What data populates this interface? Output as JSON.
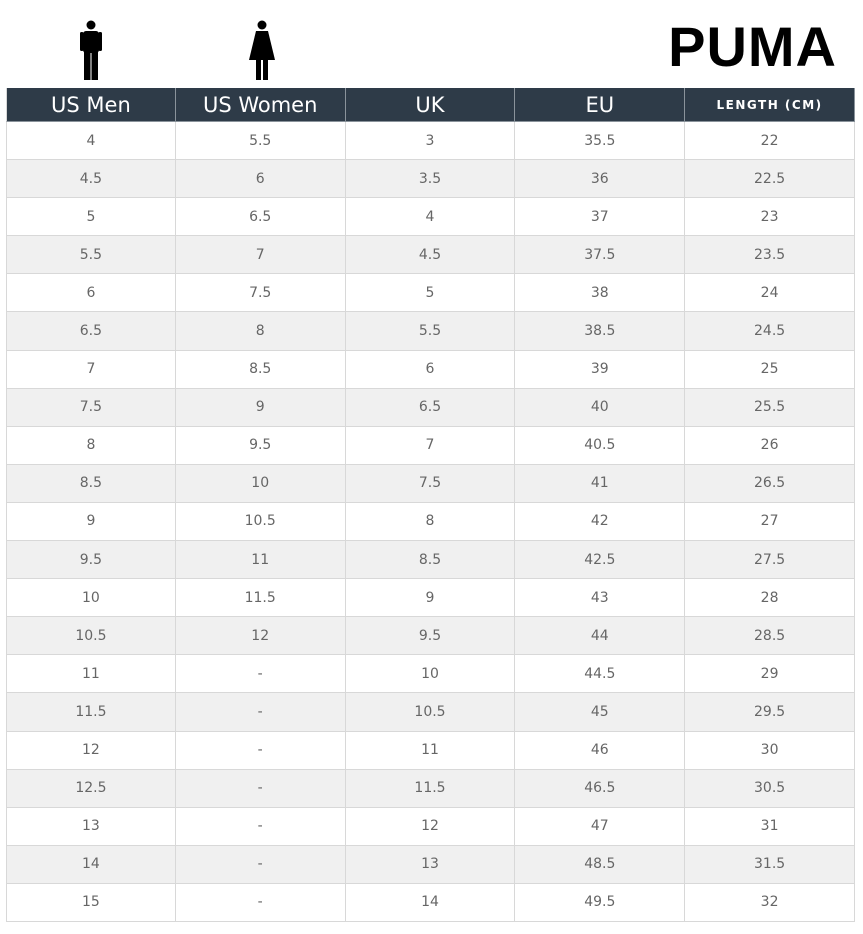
{
  "brand": "PUMA",
  "table": {
    "headers": [
      "US Men",
      "US Women",
      "UK",
      "EU",
      "LENGTH (CM)"
    ],
    "rows": [
      [
        "4",
        "5.5",
        "3",
        "35.5",
        "22"
      ],
      [
        "4.5",
        "6",
        "3.5",
        "36",
        "22.5"
      ],
      [
        "5",
        "6.5",
        "4",
        "37",
        "23"
      ],
      [
        "5.5",
        "7",
        "4.5",
        "37.5",
        "23.5"
      ],
      [
        "6",
        "7.5",
        "5",
        "38",
        "24"
      ],
      [
        "6.5",
        "8",
        "5.5",
        "38.5",
        "24.5"
      ],
      [
        "7",
        "8.5",
        "6",
        "39",
        "25"
      ],
      [
        "7.5",
        "9",
        "6.5",
        "40",
        "25.5"
      ],
      [
        "8",
        "9.5",
        "7",
        "40.5",
        "26"
      ],
      [
        "8.5",
        "10",
        "7.5",
        "41",
        "26.5"
      ],
      [
        "9",
        "10.5",
        "8",
        "42",
        "27"
      ],
      [
        "9.5",
        "11",
        "8.5",
        "42.5",
        "27.5"
      ],
      [
        "10",
        "11.5",
        "9",
        "43",
        "28"
      ],
      [
        "10.5",
        "12",
        "9.5",
        "44",
        "28.5"
      ],
      [
        "11",
        "-",
        "10",
        "44.5",
        "29"
      ],
      [
        "11.5",
        "-",
        "10.5",
        "45",
        "29.5"
      ],
      [
        "12",
        "-",
        "11",
        "46",
        "30"
      ],
      [
        "12.5",
        "-",
        "11.5",
        "46.5",
        "30.5"
      ],
      [
        "13",
        "-",
        "12",
        "47",
        "31"
      ],
      [
        "14",
        "-",
        "13",
        "48.5",
        "31.5"
      ],
      [
        "15",
        "-",
        "14",
        "49.5",
        "32"
      ]
    ]
  }
}
